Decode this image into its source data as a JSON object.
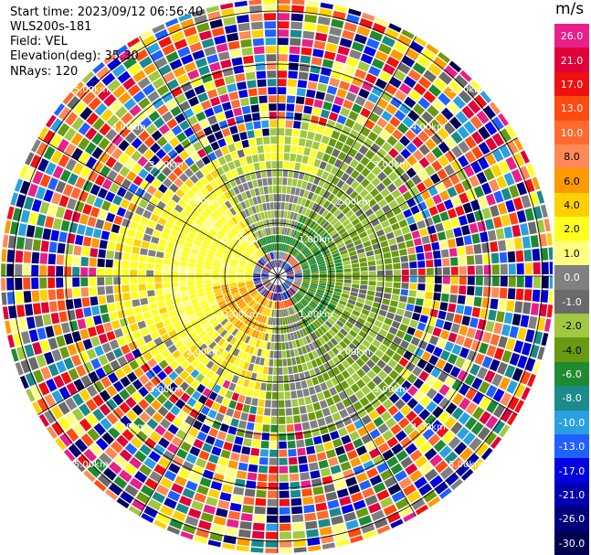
{
  "header": {
    "start_time": "Start time: 2023/09/12 06:56:40",
    "instrument": "WLS200s-181",
    "field": "Field: VEL",
    "elevation": "Elevation(deg): 35.30",
    "nrays": "NRays: 120"
  },
  "colorbar": {
    "unit": "m/s",
    "levels": [
      {
        "label": "26.0",
        "color": "#e8208a"
      },
      {
        "label": "21.0",
        "color": "#e0003a"
      },
      {
        "label": "17.0",
        "color": "#f01010"
      },
      {
        "label": "13.0",
        "color": "#ff4a10"
      },
      {
        "label": "10.0",
        "color": "#ff6a30"
      },
      {
        "label": "8.0",
        "color": "#ff8a55"
      },
      {
        "label": "6.0",
        "color": "#ff9a00"
      },
      {
        "label": "4.0",
        "color": "#ffd000"
      },
      {
        "label": "2.0",
        "color": "#ffff20"
      },
      {
        "label": "1.0",
        "color": "#ffff80"
      },
      {
        "label": "0.0",
        "color": "#808080"
      },
      {
        "label": "-1.0",
        "color": "#6a6a6a"
      },
      {
        "label": "-2.0",
        "color": "#a0c840"
      },
      {
        "label": "-4.0",
        "color": "#6a9a10"
      },
      {
        "label": "-6.0",
        "color": "#208a30"
      },
      {
        "label": "-8.0",
        "color": "#1a8a8a"
      },
      {
        "label": "-10.0",
        "color": "#2aa0e0"
      },
      {
        "label": "-13.0",
        "color": "#2060ff"
      },
      {
        "label": "-17.0",
        "color": "#0000e0"
      },
      {
        "label": "-21.0",
        "color": "#0000b0"
      },
      {
        "label": "-26.0",
        "color": "#00007a"
      },
      {
        "label": "-30.0",
        "color": "#000050"
      }
    ]
  },
  "ring_labels": {
    "r1": "1.00km",
    "r2": "2.00km",
    "r3": "3.00km",
    "r4": "4.00km",
    "r5": "5.00km"
  }
}
